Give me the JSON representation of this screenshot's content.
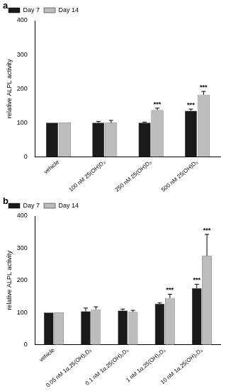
{
  "chart_data": [
    {
      "type": "bar",
      "panel": "a",
      "categories": [
        "vehicle",
        "100 nM 25(OH)D₃",
        "250 nM 25(OH)D₃",
        "500 nM 25(OH)D₃"
      ],
      "series": [
        {
          "name": "Day 7",
          "color": "#1a1a1a",
          "values": [
            100,
            100,
            100,
            135
          ],
          "errors": [
            0,
            4,
            2,
            5
          ],
          "significance": [
            null,
            null,
            null,
            "***"
          ]
        },
        {
          "name": "Day 14",
          "color": "#bdbdbd",
          "values": [
            100,
            100,
            137,
            182
          ],
          "errors": [
            0,
            7,
            6,
            10
          ],
          "significance": [
            null,
            null,
            "***",
            "***"
          ]
        }
      ],
      "y_label": "relative ALPL activity",
      "ylim": [
        0,
        400
      ],
      "yticks": [
        0,
        100,
        200,
        300,
        400
      ],
      "legend": "upper left",
      "grid": false
    },
    {
      "type": "bar",
      "panel": "b",
      "categories": [
        "vehicle",
        "0.05 nM 1α,25(OH)₂D₃",
        "0.1 nM 1α,25(OH)₂D₃",
        "1 nM 1α,25(OH)₂D₃",
        "10 nM 1α,25(OH)₂D₃"
      ],
      "series": [
        {
          "name": "Day 7",
          "color": "#1a1a1a",
          "values": [
            100,
            104,
            106,
            127,
            176
          ],
          "errors": [
            0,
            10,
            5,
            3,
            12
          ],
          "significance": [
            null,
            null,
            null,
            null,
            "***"
          ]
        },
        {
          "name": "Day 14",
          "color": "#bdbdbd",
          "values": [
            100,
            110,
            102,
            145,
            276
          ],
          "errors": [
            0,
            8,
            5,
            12,
            67
          ],
          "significance": [
            null,
            null,
            null,
            "***",
            "***"
          ]
        }
      ],
      "y_label": "relative ALPL activity",
      "ylim": [
        0,
        400
      ],
      "yticks": [
        0,
        100,
        200,
        300,
        400
      ],
      "legend": "upper left",
      "grid": false
    }
  ]
}
